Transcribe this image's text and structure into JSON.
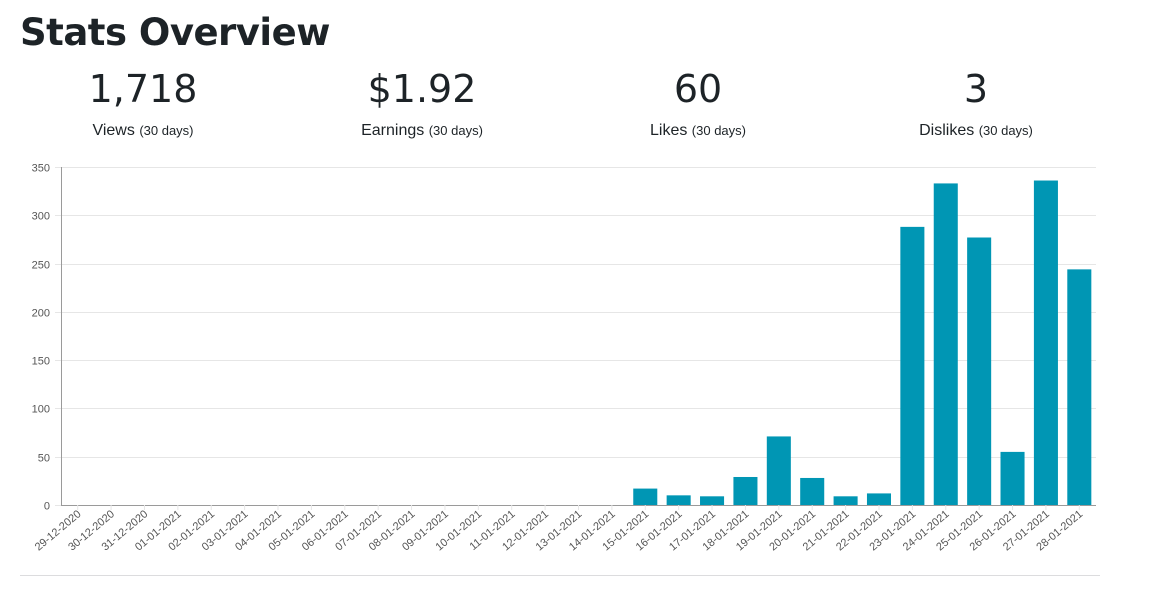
{
  "page": {
    "title": "Stats Overview"
  },
  "stats": [
    {
      "value": "1,718",
      "label": "Views",
      "period": "(30 days)"
    },
    {
      "value": "$1.92",
      "label": "Earnings",
      "period": "(30 days)"
    },
    {
      "value": "60",
      "label": "Likes",
      "period": "(30 days)"
    },
    {
      "value": "3",
      "label": "Dislikes",
      "period": "(30 days)"
    }
  ],
  "colors": {
    "bar": "#0096b4",
    "grid": "#e6e6e6",
    "axis": "#9a9a9a",
    "text": "#1d2327"
  },
  "chart_data": {
    "type": "bar",
    "title": "",
    "xlabel": "",
    "ylabel": "",
    "ylim": [
      0,
      350
    ],
    "yticks": [
      0,
      50,
      100,
      150,
      200,
      250,
      300,
      350
    ],
    "grid": true,
    "categories": [
      "29-12-2020",
      "30-12-2020",
      "31-12-2020",
      "01-01-2021",
      "02-01-2021",
      "03-01-2021",
      "04-01-2021",
      "05-01-2021",
      "06-01-2021",
      "07-01-2021",
      "08-01-2021",
      "09-01-2021",
      "10-01-2021",
      "11-01-2021",
      "12-01-2021",
      "13-01-2021",
      "14-01-2021",
      "15-01-2021",
      "16-01-2021",
      "17-01-2021",
      "18-01-2021",
      "19-01-2021",
      "20-01-2021",
      "21-01-2021",
      "22-01-2021",
      "23-01-2021",
      "24-01-2021",
      "25-01-2021",
      "26-01-2021",
      "27-01-2021",
      "28-01-2021"
    ],
    "values": [
      0,
      0,
      0,
      0,
      0,
      0,
      0,
      0,
      0,
      0,
      0,
      0,
      0,
      0,
      0,
      0,
      0,
      17,
      10,
      9,
      29,
      71,
      28,
      9,
      12,
      288,
      333,
      277,
      55,
      336,
      244
    ]
  }
}
